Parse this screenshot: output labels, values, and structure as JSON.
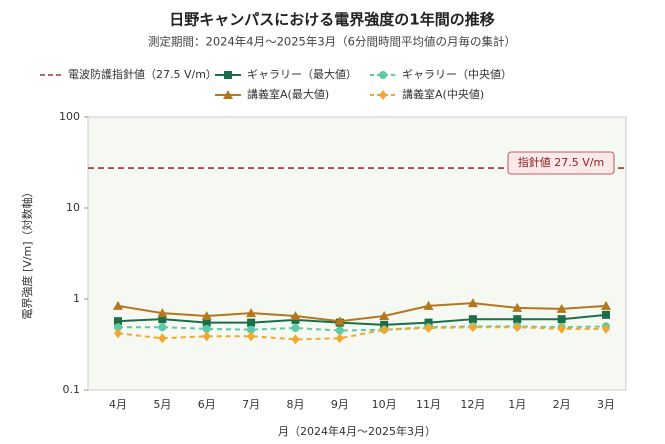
{
  "chart_data": {
    "type": "line",
    "title": "日野キャンパスにおける電界強度の1年間の推移",
    "subtitle": "測定期間：2024年4月〜2025年3月（6分間時間平均値の月毎の集計）",
    "x_label": "月（2024年4月〜2025年3月）",
    "y_label": "電界強度 [V/m]（対数軸）",
    "categories": [
      "4月",
      "5月",
      "6月",
      "7月",
      "8月",
      "9月",
      "10月",
      "11月",
      "12月",
      "1月",
      "2月",
      "3月"
    ],
    "log_scale": true,
    "grid": false,
    "ylim": [
      0.1,
      100
    ],
    "yticks": [
      0.1,
      1,
      10,
      100
    ],
    "reference": {
      "name": "電波防護指針値（27.5 V/m）",
      "label": "指針値 27.5 V/m",
      "value": 27.5,
      "color": "#a83232"
    },
    "series": [
      {
        "name": "ギャラリー（最大値）",
        "color": "#1a6e4a",
        "marker": "square",
        "line_style": "solid",
        "values": [
          0.57,
          0.6,
          0.55,
          0.55,
          0.59,
          0.55,
          0.52,
          0.55,
          0.6,
          0.6,
          0.6,
          0.67
        ]
      },
      {
        "name": "ギャラリー（中央値）",
        "color": "#5cc9a7",
        "marker": "circle",
        "line_style": "dashed",
        "values": [
          0.49,
          0.49,
          0.47,
          0.46,
          0.48,
          0.45,
          0.46,
          0.49,
          0.5,
          0.5,
          0.49,
          0.5
        ]
      },
      {
        "name": "講義室A(最大値)",
        "color": "#b5771e",
        "marker": "triangle",
        "line_style": "solid",
        "values": [
          0.84,
          0.7,
          0.65,
          0.7,
          0.65,
          0.57,
          0.65,
          0.84,
          0.9,
          0.8,
          0.78,
          0.84
        ]
      },
      {
        "name": "講義室A(中央値)",
        "color": "#f0a830",
        "marker": "diamond",
        "line_style": "dashed",
        "values": [
          0.42,
          0.37,
          0.39,
          0.39,
          0.36,
          0.37,
          0.46,
          0.48,
          0.49,
          0.49,
          0.47,
          0.47
        ]
      }
    ]
  }
}
